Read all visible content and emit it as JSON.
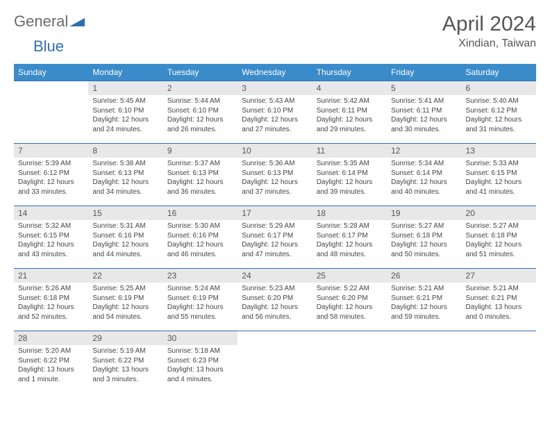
{
  "brand": {
    "part1": "General",
    "part2": "Blue"
  },
  "title": "April 2024",
  "location": "Xindian, Taiwan",
  "colors": {
    "header_bg": "#3a8bc9",
    "header_text": "#ffffff",
    "border": "#2f6fb0",
    "daynum_bg": "#e8e8e8",
    "text": "#444444"
  },
  "weekdays": [
    "Sunday",
    "Monday",
    "Tuesday",
    "Wednesday",
    "Thursday",
    "Friday",
    "Saturday"
  ],
  "weeks": [
    [
      null,
      {
        "n": "1",
        "sr": "Sunrise: 5:45 AM",
        "ss": "Sunset: 6:10 PM",
        "dl": "Daylight: 12 hours and 24 minutes."
      },
      {
        "n": "2",
        "sr": "Sunrise: 5:44 AM",
        "ss": "Sunset: 6:10 PM",
        "dl": "Daylight: 12 hours and 26 minutes."
      },
      {
        "n": "3",
        "sr": "Sunrise: 5:43 AM",
        "ss": "Sunset: 6:10 PM",
        "dl": "Daylight: 12 hours and 27 minutes."
      },
      {
        "n": "4",
        "sr": "Sunrise: 5:42 AM",
        "ss": "Sunset: 6:11 PM",
        "dl": "Daylight: 12 hours and 29 minutes."
      },
      {
        "n": "5",
        "sr": "Sunrise: 5:41 AM",
        "ss": "Sunset: 6:11 PM",
        "dl": "Daylight: 12 hours and 30 minutes."
      },
      {
        "n": "6",
        "sr": "Sunrise: 5:40 AM",
        "ss": "Sunset: 6:12 PM",
        "dl": "Daylight: 12 hours and 31 minutes."
      }
    ],
    [
      {
        "n": "7",
        "sr": "Sunrise: 5:39 AM",
        "ss": "Sunset: 6:12 PM",
        "dl": "Daylight: 12 hours and 33 minutes."
      },
      {
        "n": "8",
        "sr": "Sunrise: 5:38 AM",
        "ss": "Sunset: 6:13 PM",
        "dl": "Daylight: 12 hours and 34 minutes."
      },
      {
        "n": "9",
        "sr": "Sunrise: 5:37 AM",
        "ss": "Sunset: 6:13 PM",
        "dl": "Daylight: 12 hours and 36 minutes."
      },
      {
        "n": "10",
        "sr": "Sunrise: 5:36 AM",
        "ss": "Sunset: 6:13 PM",
        "dl": "Daylight: 12 hours and 37 minutes."
      },
      {
        "n": "11",
        "sr": "Sunrise: 5:35 AM",
        "ss": "Sunset: 6:14 PM",
        "dl": "Daylight: 12 hours and 39 minutes."
      },
      {
        "n": "12",
        "sr": "Sunrise: 5:34 AM",
        "ss": "Sunset: 6:14 PM",
        "dl": "Daylight: 12 hours and 40 minutes."
      },
      {
        "n": "13",
        "sr": "Sunrise: 5:33 AM",
        "ss": "Sunset: 6:15 PM",
        "dl": "Daylight: 12 hours and 41 minutes."
      }
    ],
    [
      {
        "n": "14",
        "sr": "Sunrise: 5:32 AM",
        "ss": "Sunset: 6:15 PM",
        "dl": "Daylight: 12 hours and 43 minutes."
      },
      {
        "n": "15",
        "sr": "Sunrise: 5:31 AM",
        "ss": "Sunset: 6:16 PM",
        "dl": "Daylight: 12 hours and 44 minutes."
      },
      {
        "n": "16",
        "sr": "Sunrise: 5:30 AM",
        "ss": "Sunset: 6:16 PM",
        "dl": "Daylight: 12 hours and 46 minutes."
      },
      {
        "n": "17",
        "sr": "Sunrise: 5:29 AM",
        "ss": "Sunset: 6:17 PM",
        "dl": "Daylight: 12 hours and 47 minutes."
      },
      {
        "n": "18",
        "sr": "Sunrise: 5:28 AM",
        "ss": "Sunset: 6:17 PM",
        "dl": "Daylight: 12 hours and 48 minutes."
      },
      {
        "n": "19",
        "sr": "Sunrise: 5:27 AM",
        "ss": "Sunset: 6:18 PM",
        "dl": "Daylight: 12 hours and 50 minutes."
      },
      {
        "n": "20",
        "sr": "Sunrise: 5:27 AM",
        "ss": "Sunset: 6:18 PM",
        "dl": "Daylight: 12 hours and 51 minutes."
      }
    ],
    [
      {
        "n": "21",
        "sr": "Sunrise: 5:26 AM",
        "ss": "Sunset: 6:18 PM",
        "dl": "Daylight: 12 hours and 52 minutes."
      },
      {
        "n": "22",
        "sr": "Sunrise: 5:25 AM",
        "ss": "Sunset: 6:19 PM",
        "dl": "Daylight: 12 hours and 54 minutes."
      },
      {
        "n": "23",
        "sr": "Sunrise: 5:24 AM",
        "ss": "Sunset: 6:19 PM",
        "dl": "Daylight: 12 hours and 55 minutes."
      },
      {
        "n": "24",
        "sr": "Sunrise: 5:23 AM",
        "ss": "Sunset: 6:20 PM",
        "dl": "Daylight: 12 hours and 56 minutes."
      },
      {
        "n": "25",
        "sr": "Sunrise: 5:22 AM",
        "ss": "Sunset: 6:20 PM",
        "dl": "Daylight: 12 hours and 58 minutes."
      },
      {
        "n": "26",
        "sr": "Sunrise: 5:21 AM",
        "ss": "Sunset: 6:21 PM",
        "dl": "Daylight: 12 hours and 59 minutes."
      },
      {
        "n": "27",
        "sr": "Sunrise: 5:21 AM",
        "ss": "Sunset: 6:21 PM",
        "dl": "Daylight: 13 hours and 0 minutes."
      }
    ],
    [
      {
        "n": "28",
        "sr": "Sunrise: 5:20 AM",
        "ss": "Sunset: 6:22 PM",
        "dl": "Daylight: 13 hours and 1 minute."
      },
      {
        "n": "29",
        "sr": "Sunrise: 5:19 AM",
        "ss": "Sunset: 6:22 PM",
        "dl": "Daylight: 13 hours and 3 minutes."
      },
      {
        "n": "30",
        "sr": "Sunrise: 5:18 AM",
        "ss": "Sunset: 6:23 PM",
        "dl": "Daylight: 13 hours and 4 minutes."
      },
      null,
      null,
      null,
      null
    ]
  ]
}
